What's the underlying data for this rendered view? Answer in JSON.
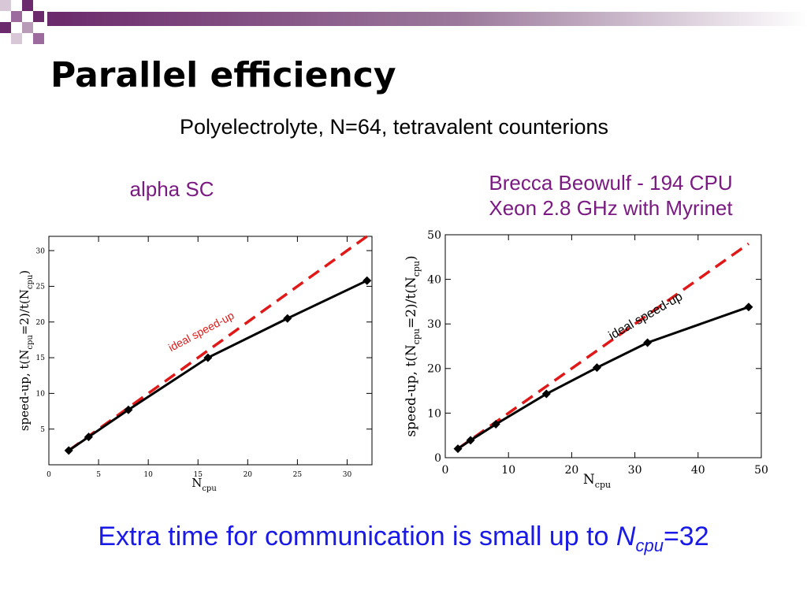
{
  "slide": {
    "title": "Parallel efficiency",
    "subtitle": "Polyelectrolyte, N=64, tetravalent counterions",
    "footer": {
      "text": "Extra time for communication is small up to ",
      "var": "N",
      "sub": "cpu",
      "rest": "=32"
    }
  },
  "colors": {
    "accent_purple": "#7a1a82",
    "deco_purple": "#6b2a6b",
    "ideal_red": "#e01818",
    "footer_blue": "#1a1ae6"
  },
  "chart_data": [
    {
      "type": "line",
      "title": "alpha SC",
      "xlabel_main": "N",
      "xlabel_sub": "cpu",
      "ylabel": "speed-up, t(N=2)/t(N)",
      "ylabel_parts": [
        "speed-up, t(N",
        "cpu",
        "=2)/t(N",
        "cpu",
        ")"
      ],
      "xlim": [
        0,
        32.5
      ],
      "ylim": [
        0,
        32
      ],
      "xticks": [
        0,
        5,
        10,
        15,
        20,
        25,
        30
      ],
      "yticks": [
        5,
        10,
        15,
        20,
        25,
        30
      ],
      "series": [
        {
          "name": "",
          "x": [
            2,
            4,
            8,
            16,
            24,
            32
          ],
          "y": [
            2,
            3.9,
            7.7,
            15,
            20.5,
            25.8
          ]
        },
        {
          "name": "ideal speed-up",
          "x": [
            2,
            32.5
          ],
          "y": [
            2,
            32.5
          ],
          "style": "dashed"
        }
      ],
      "annotation": "ideal speed-up"
    },
    {
      "type": "line",
      "title_lines": [
        "Brecca Beowulf - 194 CPU",
        "Xeon 2.8 GHz with Myrinet"
      ],
      "xlabel_main": "N",
      "xlabel_sub": "cpu",
      "ylabel_parts": [
        "speed-up, t(N",
        "cpu",
        "=2)/t(N",
        "cpu",
        ")"
      ],
      "xlim": [
        0,
        50
      ],
      "ylim": [
        0,
        50
      ],
      "xticks": [
        0,
        10,
        20,
        30,
        40,
        50
      ],
      "yticks": [
        0,
        10,
        20,
        30,
        40,
        50
      ],
      "series": [
        {
          "name": "",
          "x": [
            2,
            4,
            8,
            16,
            24,
            32,
            48
          ],
          "y": [
            2,
            3.9,
            7.5,
            14.3,
            20.2,
            25.8,
            33.8
          ]
        },
        {
          "name": "ideal speed-up",
          "x": [
            2,
            48
          ],
          "y": [
            2,
            48
          ],
          "style": "dashed"
        }
      ],
      "annotation": "ideal speed-up"
    }
  ]
}
